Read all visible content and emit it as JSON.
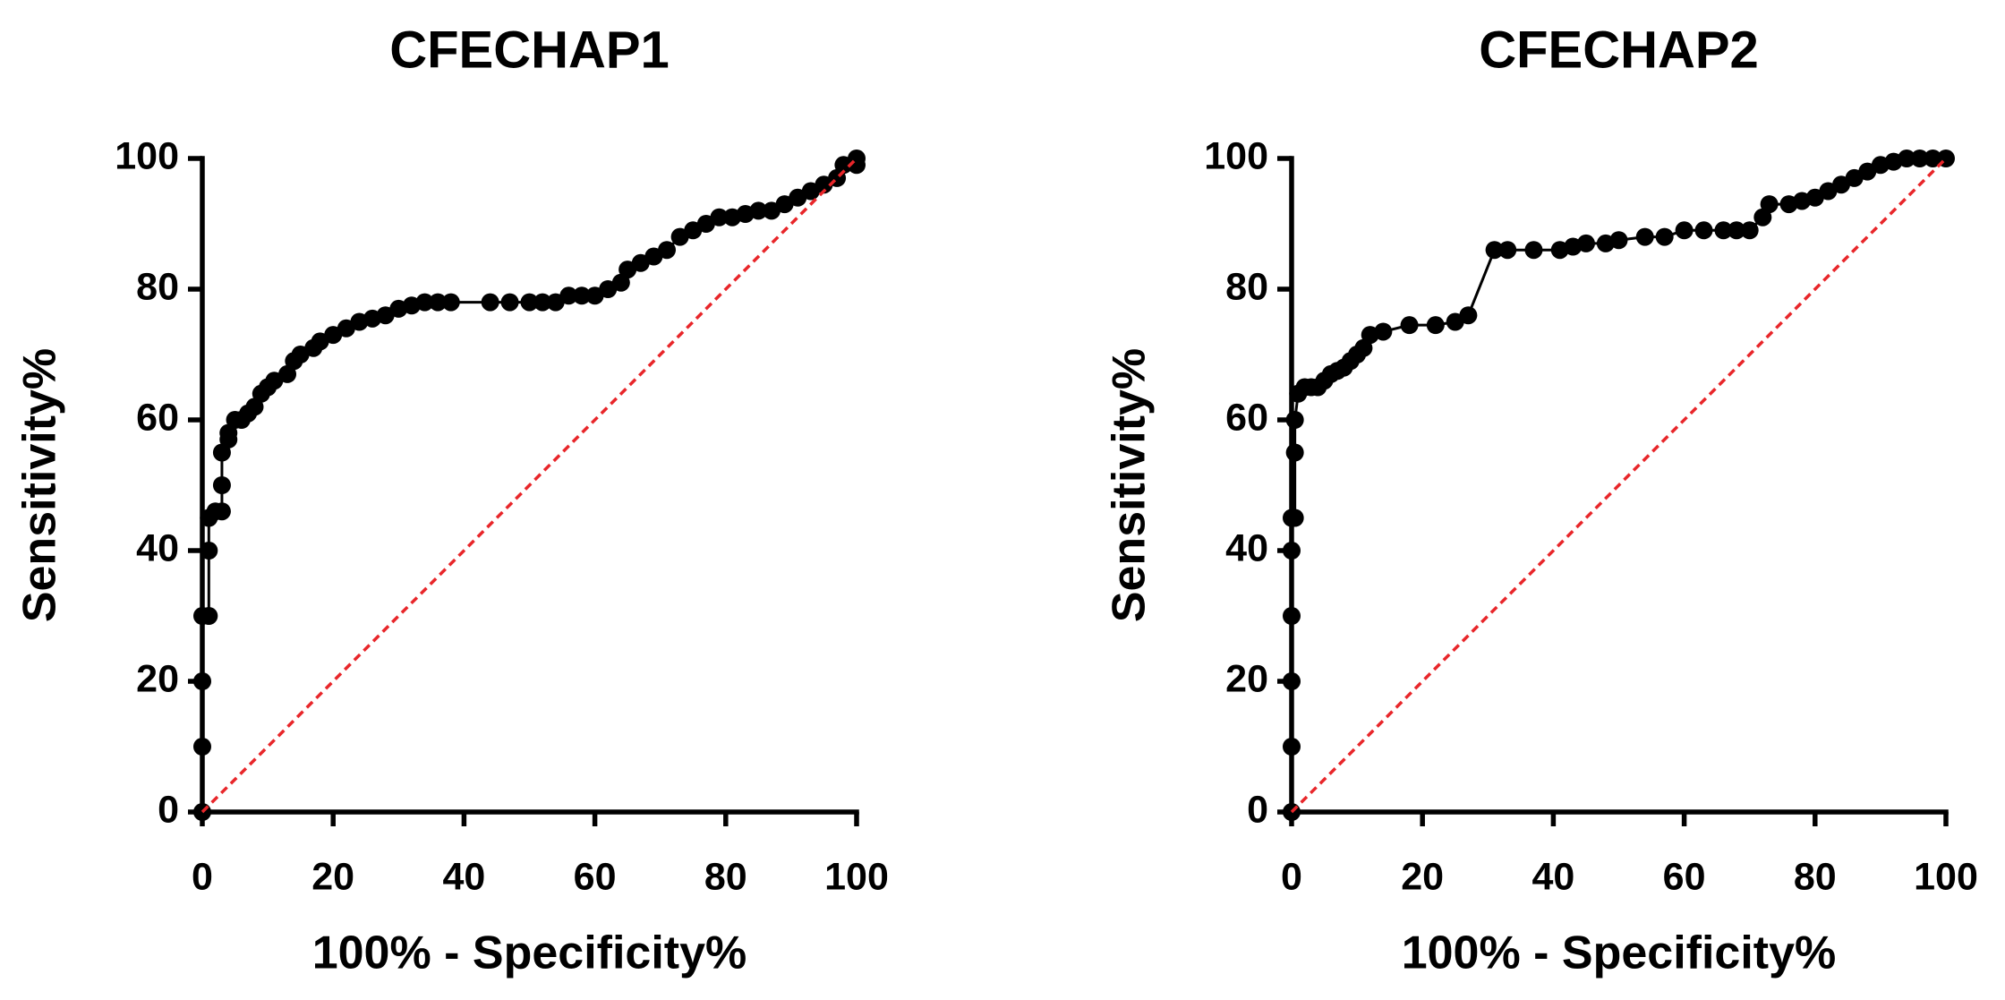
{
  "chart_data": [
    {
      "type": "line",
      "title": "CFECHAP1",
      "x_label": "100% - Specificity%",
      "y_label": "Sensitivity%",
      "xlim": [
        0,
        100
      ],
      "ylim": [
        0,
        100
      ],
      "xticks": [
        0,
        20,
        40,
        60,
        80,
        100
      ],
      "yticks": [
        0,
        20,
        40,
        60,
        80,
        100
      ],
      "series": [
        {
          "color": "#000000",
          "markers": true,
          "dashed": false,
          "x": [
            0,
            0,
            0,
            0,
            1,
            1,
            1,
            2,
            3,
            3,
            3,
            4,
            4,
            5,
            6,
            7,
            8,
            9,
            10,
            11,
            13,
            14,
            15,
            17,
            18,
            20,
            22,
            24,
            26,
            28,
            30,
            32,
            34,
            36,
            38,
            44,
            47,
            50,
            52,
            54,
            56,
            58,
            60,
            62,
            64,
            65,
            67,
            69,
            71,
            73,
            75,
            77,
            79,
            81,
            83,
            85,
            87,
            89,
            91,
            93,
            95,
            97,
            98,
            100,
            100
          ],
          "values": [
            0,
            10,
            20,
            30,
            30,
            40,
            45,
            46,
            46,
            50,
            55,
            57,
            58,
            60,
            60,
            61,
            62,
            64,
            65,
            66,
            67,
            69,
            70,
            71,
            72,
            73,
            74,
            75,
            75.5,
            76,
            77,
            77.5,
            78,
            78,
            78,
            78,
            78,
            78,
            78,
            78,
            79,
            79,
            79,
            80,
            81,
            83,
            84,
            85,
            86,
            88,
            89,
            90,
            91,
            91,
            91.5,
            92,
            92,
            93,
            94,
            95,
            96,
            97,
            99,
            99,
            100
          ]
        },
        {
          "color": "#e8262a",
          "markers": false,
          "dashed": true,
          "x": [
            0,
            100
          ],
          "values": [
            0,
            100
          ]
        }
      ]
    },
    {
      "type": "line",
      "title": "CFECHAP2",
      "x_label": "100% - Specificity%",
      "y_label": "Sensitivity%",
      "xlim": [
        0,
        100
      ],
      "ylim": [
        0,
        100
      ],
      "xticks": [
        0,
        20,
        40,
        60,
        80,
        100
      ],
      "yticks": [
        0,
        20,
        40,
        60,
        80,
        100
      ],
      "series": [
        {
          "color": "#000000",
          "markers": true,
          "dashed": false,
          "x": [
            0,
            0,
            0,
            0,
            0,
            0,
            0.5,
            0.5,
            0.5,
            1,
            2,
            3,
            4,
            5,
            6,
            7,
            8,
            9,
            10,
            11,
            12,
            14,
            18,
            22,
            25,
            27,
            31,
            33,
            37,
            41,
            43,
            45,
            48,
            50,
            54,
            57,
            60,
            63,
            66,
            68,
            70,
            72,
            73,
            76,
            78,
            80,
            82,
            84,
            86,
            88,
            90,
            92,
            94,
            96,
            98,
            100
          ],
          "values": [
            0,
            10,
            20,
            30,
            40,
            45,
            45,
            55,
            60,
            64,
            65,
            65,
            65,
            66,
            67,
            67.5,
            68,
            69,
            70,
            71,
            73,
            73.5,
            74.5,
            74.5,
            75,
            76,
            86,
            86,
            86,
            86,
            86.5,
            87,
            87,
            87.5,
            88,
            88,
            89,
            89,
            89,
            89,
            89,
            91,
            93,
            93,
            93.5,
            94,
            95,
            96,
            97,
            98,
            99,
            99.5,
            100,
            100,
            100,
            100
          ]
        },
        {
          "color": "#e8262a",
          "markers": false,
          "dashed": true,
          "x": [
            0,
            100
          ],
          "values": [
            0,
            100
          ]
        }
      ]
    }
  ]
}
